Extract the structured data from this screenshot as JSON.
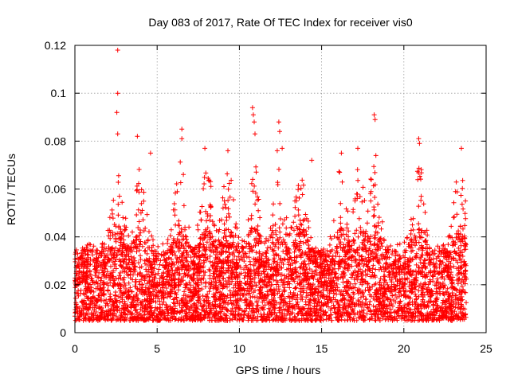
{
  "chart_data": {
    "type": "scatter",
    "title": "Day 083 of 2017, Rate Of TEC Index for receiver vis0",
    "xlabel": "GPS time / hours",
    "ylabel": "ROTI / TECUs",
    "xlim": [
      0,
      25
    ],
    "ylim": [
      0,
      0.12
    ],
    "xticks": [
      0,
      5,
      10,
      15,
      20,
      25
    ],
    "yticks": [
      0,
      0.02,
      0.04,
      0.06,
      0.08,
      0.1,
      0.12
    ],
    "xtick_labels": [
      "0",
      "5",
      "10",
      "15",
      "20",
      "25"
    ],
    "ytick_labels": [
      "0",
      "0.02",
      "0.04",
      "0.06",
      "0.08",
      "0.1",
      "0.12"
    ],
    "grid": true,
    "marker": "plus",
    "color": "#ff0000",
    "series": [
      {
        "name": "ROTI",
        "x_range": [
          0.0,
          23.8
        ],
        "typical_range": [
          0.005,
          0.04
        ],
        "notable_points": [
          {
            "x": 2.6,
            "y": 0.118
          },
          {
            "x": 2.6,
            "y": 0.1
          },
          {
            "x": 2.55,
            "y": 0.092
          },
          {
            "x": 2.6,
            "y": 0.083
          },
          {
            "x": 3.8,
            "y": 0.082
          },
          {
            "x": 4.6,
            "y": 0.075
          },
          {
            "x": 6.5,
            "y": 0.085
          },
          {
            "x": 6.5,
            "y": 0.081
          },
          {
            "x": 7.9,
            "y": 0.077
          },
          {
            "x": 9.3,
            "y": 0.076
          },
          {
            "x": 10.8,
            "y": 0.094
          },
          {
            "x": 10.85,
            "y": 0.091
          },
          {
            "x": 10.9,
            "y": 0.088
          },
          {
            "x": 10.95,
            "y": 0.083
          },
          {
            "x": 12.4,
            "y": 0.088
          },
          {
            "x": 12.45,
            "y": 0.084
          },
          {
            "x": 12.3,
            "y": 0.076
          },
          {
            "x": 12.6,
            "y": 0.077
          },
          {
            "x": 14.4,
            "y": 0.072
          },
          {
            "x": 16.2,
            "y": 0.075
          },
          {
            "x": 17.2,
            "y": 0.077
          },
          {
            "x": 18.2,
            "y": 0.091
          },
          {
            "x": 18.25,
            "y": 0.089
          },
          {
            "x": 18.3,
            "y": 0.074
          },
          {
            "x": 20.9,
            "y": 0.081
          },
          {
            "x": 20.95,
            "y": 0.079
          },
          {
            "x": 23.5,
            "y": 0.077
          }
        ]
      }
    ]
  }
}
